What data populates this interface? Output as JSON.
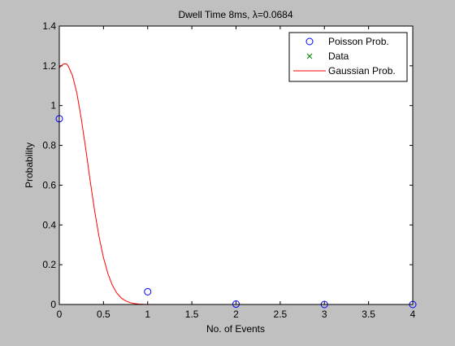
{
  "chart_data": {
    "type": "scatter",
    "title": "Dwell Time 8ms, λ=0.0684",
    "xlabel": "No. of Events",
    "ylabel": "Probability",
    "xlim": [
      0,
      4
    ],
    "ylim": [
      0,
      1.4
    ],
    "xticks": [
      "0",
      "0.5",
      "1",
      "1.5",
      "2",
      "2.5",
      "3",
      "3.5",
      "4"
    ],
    "yticks": [
      "0",
      "0.2",
      "0.4",
      "0.6",
      "0.8",
      "1",
      "1.2",
      "1.4"
    ],
    "grid": false,
    "legend_position": "top-right",
    "series": [
      {
        "name": "Poisson Prob.",
        "marker": "circle",
        "color": "#0000ff",
        "x": [
          0,
          1,
          2,
          3,
          4
        ],
        "y": [
          0.934,
          0.064,
          0.002,
          0.0,
          0.0
        ]
      },
      {
        "name": "Data",
        "marker": "x",
        "color": "#008000",
        "x": [],
        "y": []
      },
      {
        "name": "Gaussian Prob.",
        "marker": "line",
        "color": "#ff0000",
        "x": [
          0,
          0.02,
          0.05,
          0.08,
          0.1,
          0.15,
          0.2,
          0.25,
          0.3,
          0.35,
          0.4,
          0.45,
          0.5,
          0.55,
          0.6,
          0.65,
          0.7,
          0.75,
          0.8,
          0.85,
          0.9,
          0.95,
          1.0,
          1.05,
          1.1,
          1.15,
          1.2,
          1.3,
          1.5,
          2.0,
          2.5,
          2.9
        ],
        "y": [
          1.19,
          1.2,
          1.21,
          1.21,
          1.2,
          1.15,
          1.06,
          0.93,
          0.78,
          0.62,
          0.47,
          0.34,
          0.235,
          0.155,
          0.097,
          0.058,
          0.033,
          0.018,
          0.0095,
          0.0048,
          0.0023,
          0.0011,
          0.0005,
          0.0002,
          0.0001,
          0,
          0,
          0,
          0,
          0,
          0,
          0
        ]
      }
    ]
  }
}
